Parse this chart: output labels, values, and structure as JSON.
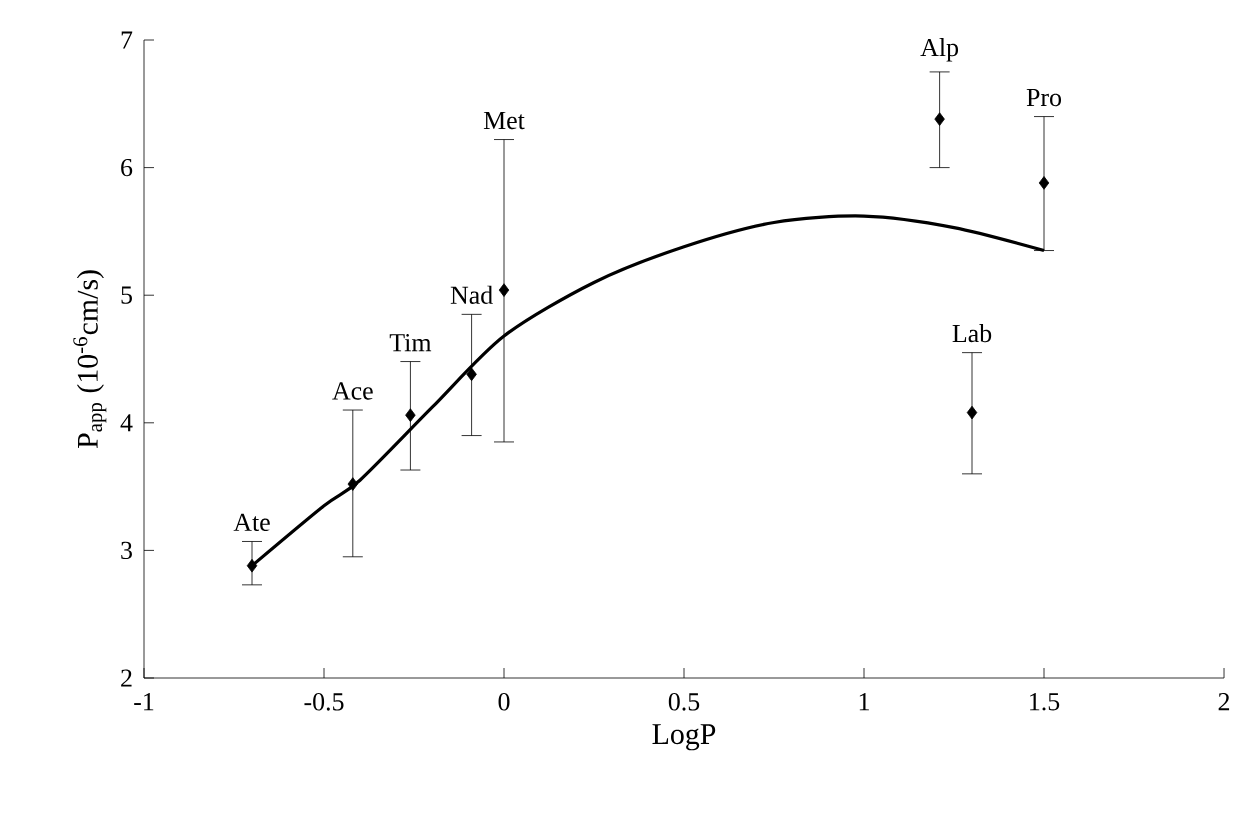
{
  "chart_data": {
    "type": "scatter",
    "xlabel": "LogP",
    "ylabel": "P$_{app}$ (10$^{-6}$cm/s)",
    "xlim": [
      -1,
      2
    ],
    "ylim": [
      2,
      7
    ],
    "xticks": [
      -1,
      -0.5,
      0,
      0.5,
      1,
      1.5,
      2
    ],
    "yticks": [
      2,
      3,
      4,
      5,
      6,
      7
    ],
    "grid": false,
    "marker": "diamond",
    "series": [
      {
        "color": "#000000",
        "x": [
          -0.7,
          -0.42,
          -0.26,
          -0.09,
          0.0,
          1.21,
          1.5,
          1.3
        ],
        "values": [
          2.88,
          3.52,
          4.06,
          4.38,
          5.04,
          6.38,
          5.88,
          4.08
        ],
        "errors": [
          [
            2.73,
            3.07
          ],
          [
            2.95,
            4.1
          ],
          [
            3.63,
            4.48
          ],
          [
            3.9,
            4.85
          ],
          [
            3.85,
            6.22
          ],
          [
            6.0,
            6.75
          ],
          [
            5.35,
            6.4
          ],
          [
            3.6,
            4.55
          ]
        ]
      },
      {
        "type": "line",
        "color": "#000000",
        "line_style": "solid",
        "marker": "none",
        "x": [
          -0.7,
          -0.5,
          -0.4,
          -0.2,
          0,
          0.25,
          0.5,
          0.75,
          1.0,
          1.25,
          1.5
        ],
        "values": [
          2.88,
          3.35,
          3.55,
          4.12,
          4.68,
          5.1,
          5.38,
          5.57,
          5.62,
          5.53,
          5.35
        ]
      }
    ],
    "annotations": [
      {
        "text": "Ate",
        "x": -0.7,
        "y": 3.07
      },
      {
        "text": "Ace",
        "x": -0.42,
        "y": 4.1
      },
      {
        "text": "Tim",
        "x": -0.26,
        "y": 4.48
      },
      {
        "text": "Nad",
        "x": -0.09,
        "y": 4.85
      },
      {
        "text": "Met",
        "x": 0.0,
        "y": 6.22
      },
      {
        "text": "Alp",
        "x": 1.21,
        "y": 6.75
      },
      {
        "text": "Pro",
        "x": 1.5,
        "y": 6.4
      },
      {
        "text": "Lab",
        "x": 1.3,
        "y": 4.55
      }
    ]
  }
}
